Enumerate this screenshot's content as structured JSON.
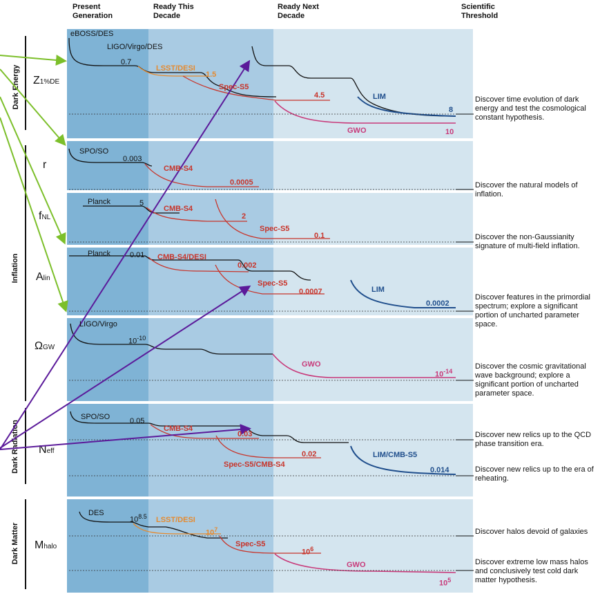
{
  "headers": {
    "present": "Present\nGeneration",
    "this_decade": "Ready This\nDecade",
    "next_decade": "Ready Next\nDecade",
    "threshold": "Scientific\nThreshold"
  },
  "categories": {
    "dark_energy": "Dark Energy",
    "inflation": "Inflation",
    "dark_radiation": "Dark Radiation",
    "dark_matter": "Dark Matter"
  },
  "rows": {
    "z": {
      "main": "Z",
      "sub": "1%DE"
    },
    "r": {
      "main": "r"
    },
    "fnl": {
      "main": "f",
      "sub": "NL"
    },
    "alin": {
      "main": "A",
      "sub": "lin"
    },
    "omega": {
      "main": "Ω",
      "sub": "GW"
    },
    "neff": {
      "main": "N",
      "sub": "eff"
    },
    "mhalo": {
      "main": "M",
      "sub": "halo"
    }
  },
  "labels": {
    "z": {
      "eboss": "eBOSS/DES",
      "ligo": "LIGO/Virgo/DES",
      "v07": "0.7",
      "lsst": "LSST/DESI",
      "v15": "1.5",
      "spec": "Spec-S5",
      "v45": "4.5",
      "lim": "LIM",
      "v8": "8",
      "gwo": "GWO",
      "v10": "10"
    },
    "r": {
      "spo": "SPO/SO",
      "v003": "0.003",
      "cmb": "CMB-S4",
      "v0005": "0.0005"
    },
    "fnl": {
      "planck": "Planck",
      "v5": "5",
      "cmb": "CMB-S4",
      "v2": "2",
      "spec": "Spec-S5",
      "v01": "0.1"
    },
    "alin": {
      "planck": "Planck",
      "v001": "0.01",
      "cmb": "CMB-S4/DESI",
      "v0002": "0.002",
      "spec": "Spec-S5",
      "v00007": "0.0007",
      "lim": "LIM",
      "v00002": "0.0002"
    },
    "omega": {
      "ligo": "LIGO/Virgo",
      "v1010": "10",
      "v1010sup": "-10",
      "gwo": "GWO",
      "v1014": "10",
      "v1014sup": "-14"
    },
    "neff": {
      "spo": "SPO/SO",
      "v005": "0.05",
      "cmb": "CMB-S4",
      "v003": "0.03",
      "v002": "0.02",
      "spec": "Spec-S5/CMB-S4",
      "lim": "LIM/CMB-S5",
      "v0014": "0.014"
    },
    "mhalo": {
      "des": "DES",
      "v85": "10",
      "v85sup": "8.5",
      "lsst": "LSST/DESI",
      "v7": "10",
      "v7sup": "7",
      "spec": "Spec-S5",
      "v6": "10",
      "v6sup": "6",
      "gwo": "GWO",
      "v5": "10",
      "v5sup": "5"
    }
  },
  "thresholds": {
    "z": "Discover time evolution of dark energy and test the cosmological constant hypothesis.",
    "r": "Discover the natural models of inflation.",
    "fnl": "Discover the non-Gaussianity signature of multi-field inflation.",
    "alin": "Discover features in the primordial spectrum; explore a significant portion of uncharted parameter space.",
    "omega": "Discover the cosmic gravitational wave background; explore a significant portion of uncharted parameter space.",
    "neff1": "Discover new relics up to the QCD phase transition era.",
    "neff2": "Discover new relics up to the era of reheating.",
    "mhalo1": "Discover halos devoid of galaxies",
    "mhalo2": "Discover extreme low mass halos and conclusively test cold dark matter hypothesis."
  },
  "colors": {
    "black": "#111111",
    "red": "#c8342a",
    "orange": "#e58a2f",
    "blue": "#1f4e8c",
    "pink": "#c83a7a",
    "green": "#7cbf2a",
    "purple": "#5b1a9a"
  }
}
